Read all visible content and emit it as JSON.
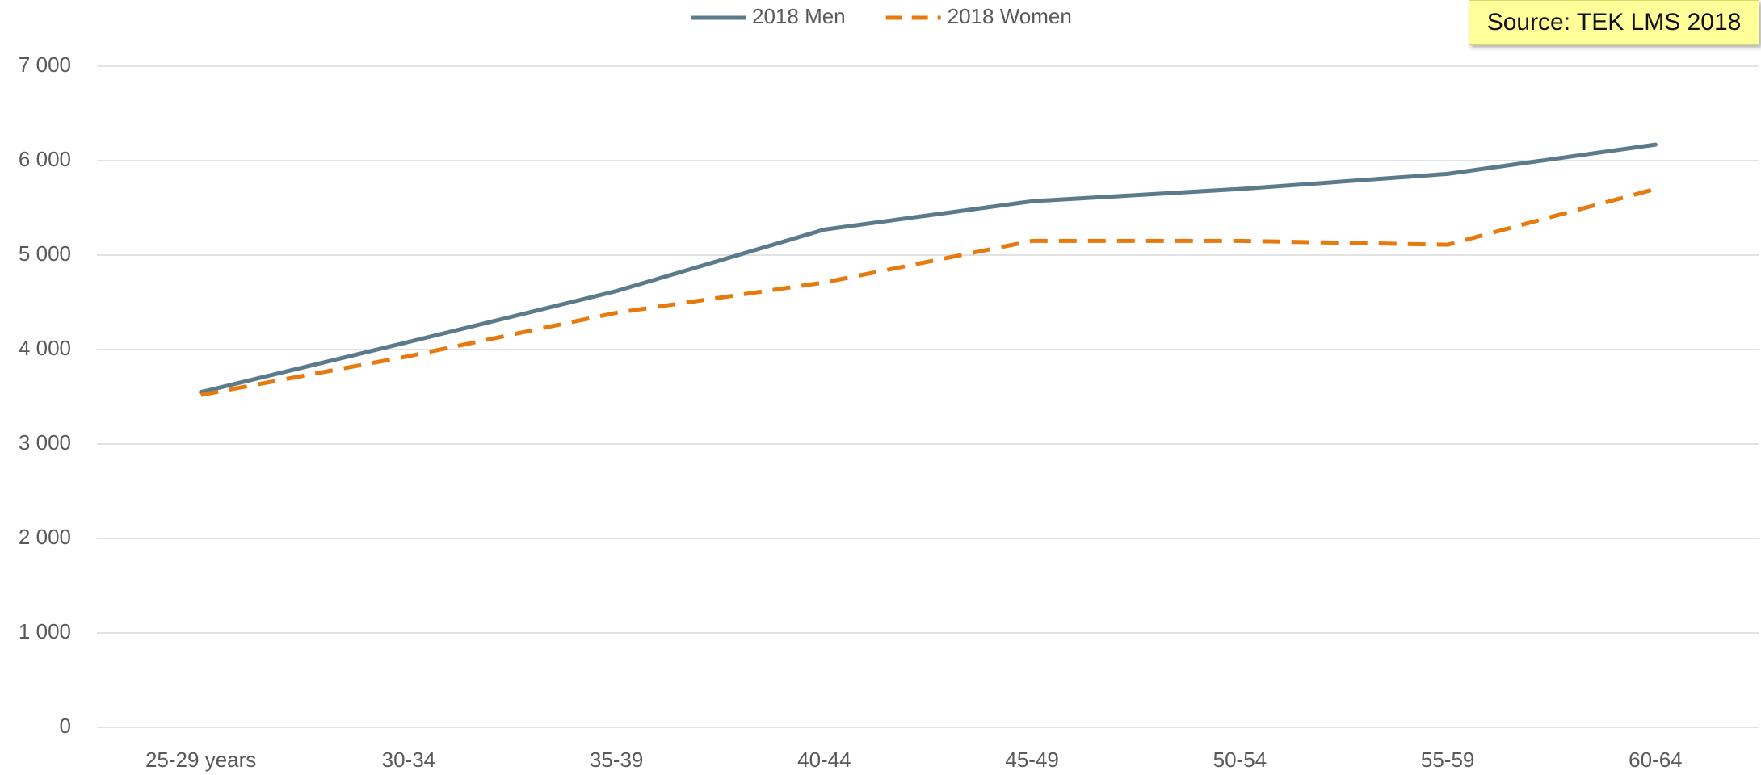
{
  "chart_data": {
    "type": "line",
    "annotation": "Source: TEK LMS 2018",
    "categories": [
      "25-29 years",
      "30-34",
      "35-39",
      "40-44",
      "45-49",
      "50-54",
      "55-59",
      "60-64"
    ],
    "series": [
      {
        "name": "2018 Men",
        "color": "#5b7b8c",
        "dashed": false,
        "values": [
          3550,
          4080,
          4620,
          5270,
          5570,
          5700,
          5860,
          6170
        ]
      },
      {
        "name": "2018 Women",
        "color": "#e67a0e",
        "dashed": true,
        "values": [
          3520,
          3930,
          4390,
          4710,
          5150,
          5150,
          5110,
          5700
        ]
      }
    ],
    "ylim": [
      0,
      7000
    ],
    "yticks": [
      0,
      {
        "value": 1000,
        "label": "1 000"
      },
      {
        "value": 2000,
        "label": "2 000"
      },
      {
        "value": 3000,
        "label": "3 000"
      },
      {
        "value": 4000,
        "label": "4 000"
      },
      {
        "value": 5000,
        "label": "5 000"
      },
      {
        "value": 6000,
        "label": "6 000"
      },
      {
        "value": 7000,
        "label": "7 000"
      }
    ],
    "grid": true,
    "legend": "top"
  }
}
